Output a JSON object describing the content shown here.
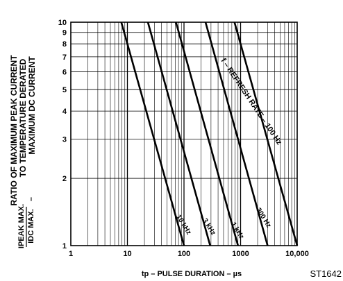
{
  "chart_data": {
    "type": "line",
    "xscale": "log",
    "yscale": "log",
    "xlim": [
      1,
      10000
    ],
    "ylim": [
      1,
      10
    ],
    "grid": true,
    "xlabel": "tp – PULSE DURATION – µs",
    "ylabel_lines": [
      "RATIO OF MAXIMUM PEAK CURRENT",
      "TO TEMPERATURE DERATED",
      "MAXIMUM DC CURRENT"
    ],
    "ylabel_formula": {
      "top": "IPEAK MAX.",
      "bottom": "IDC MAX.",
      "suffix": "–"
    },
    "x_ticks": [
      {
        "value": 1,
        "label": "1"
      },
      {
        "value": 10,
        "label": "10"
      },
      {
        "value": 100,
        "label": "100"
      },
      {
        "value": 1000,
        "label": "1000"
      },
      {
        "value": 10000,
        "label": "10,000"
      }
    ],
    "y_ticks": [
      {
        "value": 1,
        "label": "1"
      },
      {
        "value": 2,
        "label": "2"
      },
      {
        "value": 3,
        "label": "3"
      },
      {
        "value": 4,
        "label": "4"
      },
      {
        "value": 5,
        "label": "5"
      },
      {
        "value": 6,
        "label": "6"
      },
      {
        "value": 7,
        "label": "7"
      },
      {
        "value": 8,
        "label": "8"
      },
      {
        "value": 9,
        "label": "9"
      },
      {
        "value": 10,
        "label": "10"
      }
    ],
    "series": [
      {
        "label": "10 kHz",
        "x": [
          7.8,
          100
        ],
        "y": [
          10,
          1
        ]
      },
      {
        "label": "3 kHz",
        "x": [
          23,
          290
        ],
        "y": [
          10,
          1
        ]
      },
      {
        "label": "1 kHz",
        "x": [
          72,
          900
        ],
        "y": [
          10,
          1
        ]
      },
      {
        "label": "300 Hz",
        "x": [
          240,
          3000
        ],
        "y": [
          10,
          1
        ]
      },
      {
        "label": "100 Hz",
        "x": [
          780,
          10000
        ],
        "y": [
          10,
          1
        ]
      }
    ],
    "annotations": {
      "refresh_rate": "f – REFRESH RATE – 100 Hz"
    }
  },
  "figure_code": "ST1642",
  "colors": {
    "ink": "#000000",
    "paper": "#ffffff"
  }
}
